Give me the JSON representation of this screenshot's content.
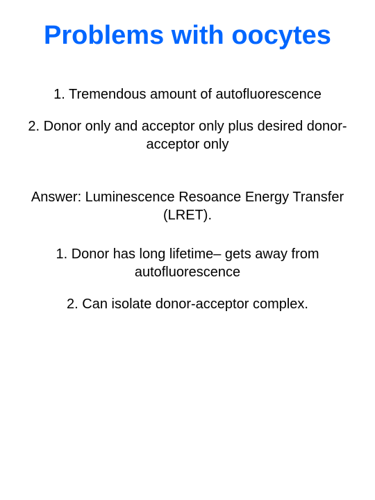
{
  "slide": {
    "title": "Problems with oocytes",
    "title_color": "#0066ff",
    "title_fontsize": 38,
    "body_fontsize": 20,
    "body_color": "#000000",
    "background_color": "#ffffff",
    "problems": {
      "item1": "1. Tremendous amount of autofluorescence",
      "item2": "2. Donor only and acceptor only plus desired donor-acceptor only"
    },
    "answer": "Answer: Luminescence Resoance Energy Transfer (LRET).",
    "solutions": {
      "point1": "1. Donor has long lifetime– gets away from autofluorescence",
      "point2": "2. Can isolate donor-acceptor complex."
    }
  }
}
